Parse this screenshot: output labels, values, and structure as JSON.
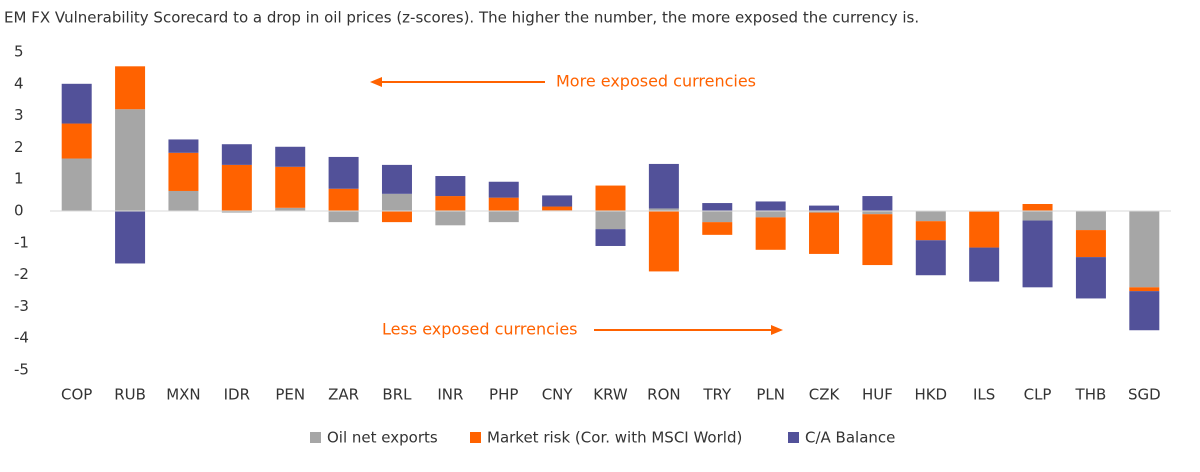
{
  "chart_data": {
    "type": "bar",
    "stacked": true,
    "title": "EM FX Vulnerability Scorecard to a drop in oil prices (z-scores). The higher the number, the more exposed the currency is.",
    "annotations": [
      "More exposed currencies",
      "Less exposed currencies"
    ],
    "categories": [
      "COP",
      "RUB",
      "MXN",
      "IDR",
      "PEN",
      "ZAR",
      "BRL",
      "INR",
      "PHP",
      "CNY",
      "KRW",
      "RON",
      "TRY",
      "PLN",
      "CZK",
      "HUF",
      "HKD",
      "ILS",
      "CLP",
      "THB",
      "SGD"
    ],
    "series": [
      {
        "name": "Oil net exports",
        "color": "#a6a6a6",
        "values": [
          1.65,
          3.2,
          0.63,
          -0.05,
          0.1,
          -0.35,
          0.54,
          -0.45,
          -0.35,
          0.02,
          -0.57,
          0.08,
          -0.35,
          -0.2,
          -0.05,
          -0.1,
          -0.32,
          -0.02,
          -0.3,
          -0.6,
          -2.4
        ]
      },
      {
        "name": "Market risk (Cor. with MSCI World)",
        "color": "#ff6200",
        "values": [
          1.1,
          1.35,
          1.2,
          1.45,
          1.29,
          0.7,
          -0.35,
          0.47,
          0.42,
          0.12,
          0.8,
          -1.9,
          -0.4,
          -1.02,
          -1.3,
          -1.6,
          -0.6,
          -1.13,
          0.22,
          -0.85,
          -0.12
        ]
      },
      {
        "name": "C/A Balance",
        "color": "#525199",
        "values": [
          1.25,
          -1.65,
          0.42,
          0.65,
          0.63,
          1.0,
          0.91,
          0.63,
          0.5,
          0.35,
          -0.53,
          1.4,
          0.25,
          0.3,
          0.17,
          0.47,
          -1.1,
          -1.07,
          -2.1,
          -1.3,
          -1.23
        ]
      }
    ],
    "ylim": [
      -5,
      5
    ],
    "yticks": [
      -5,
      -4,
      -3,
      -2,
      -1,
      0,
      1,
      2,
      3,
      4,
      5
    ]
  }
}
